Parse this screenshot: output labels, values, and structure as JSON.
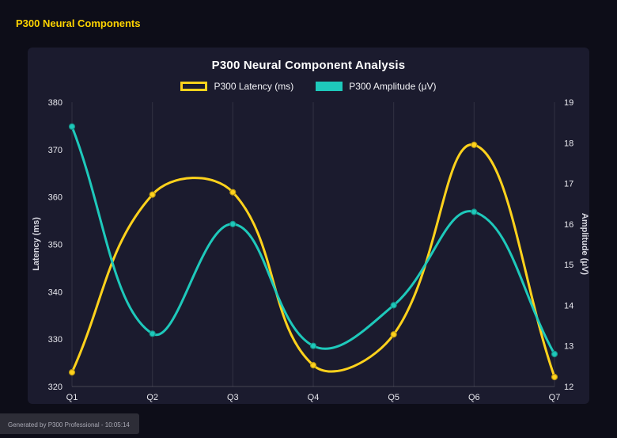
{
  "page": {
    "title": "P300 Neural Components",
    "footer": "Generated by P300 Professional - 10:05:14",
    "colors": {
      "accent": "#ffd400",
      "page_bg": "#0d0d18",
      "panel_bg": "#1b1b2e"
    }
  },
  "chart_data": {
    "type": "line",
    "title": "P300 Neural Component Analysis",
    "categories": [
      "Q1",
      "Q2",
      "Q3",
      "Q4",
      "Q5",
      "Q6",
      "Q7"
    ],
    "series": [
      {
        "name": "P300 Latency (ms)",
        "axis": "left",
        "color": "#ffd21c",
        "legend_swatch": "outline",
        "point_style": "circle",
        "values": [
          323,
          360.5,
          361,
          324.5,
          331,
          371,
          322
        ]
      },
      {
        "name": "P300 Amplitude (μV)",
        "axis": "right",
        "color": "#1ec9bb",
        "legend_swatch": "solid",
        "point_style": "circle",
        "values": [
          18.4,
          13.3,
          16.0,
          13.0,
          14.0,
          16.3,
          12.8
        ]
      }
    ],
    "left_axis": {
      "label": "Latency (ms)",
      "min": 320,
      "max": 380,
      "step": 10,
      "ticks": [
        320,
        330,
        340,
        350,
        360,
        370,
        380
      ]
    },
    "right_axis": {
      "label": "Amplitude (μV)",
      "min": 12,
      "max": 19,
      "step": 1,
      "ticks": [
        12,
        13,
        14,
        15,
        16,
        17,
        18,
        19
      ]
    },
    "legend_position": "top",
    "grid": "vertical",
    "line_tension": 0.4
  }
}
